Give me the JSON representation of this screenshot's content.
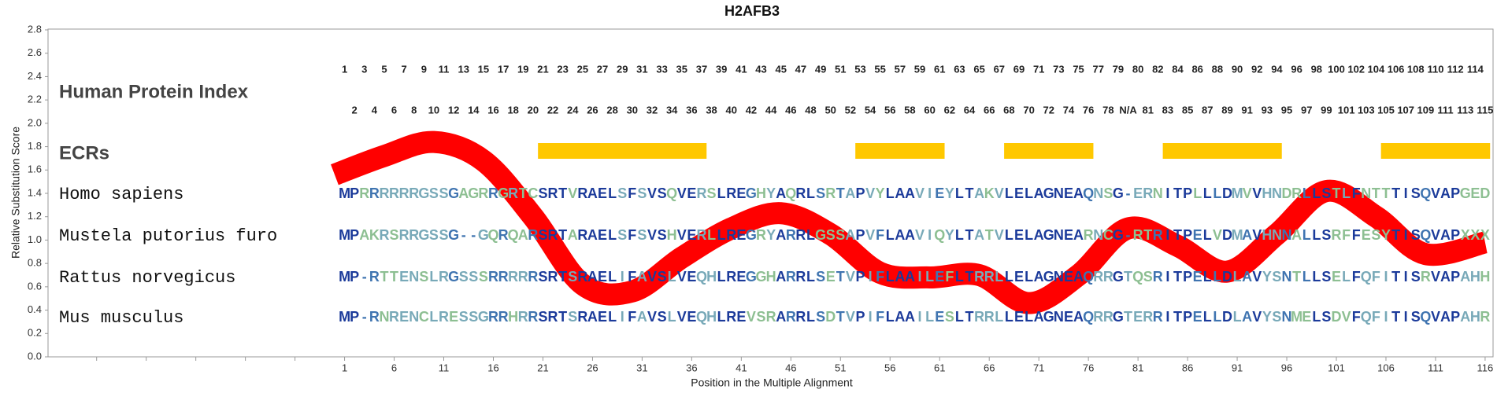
{
  "chart_data": {
    "type": "alignment",
    "title": "H2AFB3",
    "y_label": "Relative Substitution Score",
    "x_label": "Position in the Multiple Alignment",
    "xlim": [
      -28.9,
      116.8
    ],
    "ylim": [
      0,
      2.8
    ],
    "yticks": [
      {
        "value": 0,
        "label": "0.0"
      },
      0.2,
      0.4,
      0.6,
      0.8,
      {
        "value": 1,
        "label": "1.0"
      },
      1.2,
      1.4,
      1.6,
      1.8,
      {
        "value": 2,
        "label": "2.0"
      },
      2.2,
      2.4,
      2.6,
      2.8
    ],
    "xticks": [
      1,
      6,
      11,
      16,
      21,
      26,
      31,
      36,
      41,
      46,
      51,
      56,
      61,
      66,
      71,
      76,
      81,
      86,
      91,
      96,
      101,
      106,
      111,
      116
    ],
    "x_minor_ticks": [
      -24,
      -19,
      -14,
      -9,
      -4
    ],
    "score_curve": {
      "color": "#ff0000",
      "x": [
        0,
        5,
        10,
        15,
        20,
        25,
        30,
        35,
        40,
        45,
        50,
        55,
        60,
        65,
        70,
        75,
        80,
        85,
        90,
        95,
        100,
        105,
        110,
        116
      ],
      "values": [
        1.56,
        1.72,
        1.84,
        1.68,
        1.2,
        0.62,
        0.56,
        0.85,
        1.1,
        1.23,
        1.05,
        0.72,
        0.68,
        0.7,
        0.46,
        0.7,
        1.1,
        0.95,
        0.73,
        1.05,
        1.42,
        1.2,
        0.88,
        0.98
      ]
    },
    "index_label": "Human Protein Index",
    "human_index": [
      1,
      2,
      3,
      4,
      5,
      6,
      7,
      8,
      9,
      10,
      11,
      12,
      13,
      14,
      15,
      16,
      17,
      18,
      19,
      20,
      21,
      22,
      23,
      24,
      25,
      26,
      27,
      28,
      29,
      30,
      31,
      32,
      33,
      34,
      35,
      36,
      37,
      38,
      39,
      40,
      41,
      42,
      43,
      44,
      45,
      46,
      47,
      48,
      49,
      50,
      51,
      52,
      53,
      54,
      55,
      56,
      57,
      58,
      59,
      60,
      61,
      62,
      63,
      64,
      65,
      66,
      67,
      68,
      69,
      70,
      71,
      72,
      73,
      74,
      75,
      76,
      77,
      78,
      79,
      "N/A",
      80,
      81,
      82,
      83,
      84,
      85,
      86,
      87,
      88,
      89,
      90,
      91,
      92,
      93,
      94,
      95,
      96,
      97,
      98,
      99,
      100,
      101,
      102,
      103,
      104,
      105,
      106,
      107,
      108,
      109,
      110,
      111,
      112,
      113,
      114,
      115
    ],
    "ecr_label": "ECRs",
    "ecr_color": "#ffc800",
    "ecrs": [
      [
        21,
        37
      ],
      [
        53,
        61
      ],
      [
        68,
        76
      ],
      [
        84,
        95
      ],
      [
        106,
        116
      ]
    ],
    "residue_colors": {
      "4": "#1b3a9a",
      "3": "#3f74b0",
      "2": "#78a9b8",
      "1": "#8dbf92"
    },
    "species": [
      {
        "name": "Homo sapiens",
        "sequence": "MPRRRRRRGSSGAGRRGRTCSRTVRAELSFSVSQVERSLREGHYAQRLSRTAPVYLAAVIEYLTAKVLELAGNEAQNSG-ERNITPLLLDMVVHNDRLLSTLFNTTTISQVAPGED"
      },
      {
        "name": "Mustela putorius furo",
        "sequence": "MPAKRSRRGSSG--GQRQARSRTARAELSFSVSHVERLLREGRYARRLGSSAPVFLAAVIQYLTATVLELAGNEARNCG-RTRITPELVDMAVHNNALLSRFFESYTISQVAPXXX"
      },
      {
        "name": "Rattus norvegicus",
        "sequence": "MP-RTTENSLRGSSSRRRRRSRTSRAELIFAVSLVEQHLREGGHARRLSETVPIFLAAILEFLTRRLLELAGNEAQRRGTQSRITPELLDLAVYSNTLLSELFQFITISRVAPAHH"
      },
      {
        "name": "Mus musculus",
        "sequence": "MP-RNRENCLRESSGRRHRRSRTSRAELIFAVSLVEQHLREVSRARRLSDTVPIFLAAILESLTRRLLELAGNEAQRRGTERRITPELLDLAVYSNMELSDVFQFITISQVAPAHR"
      }
    ]
  }
}
